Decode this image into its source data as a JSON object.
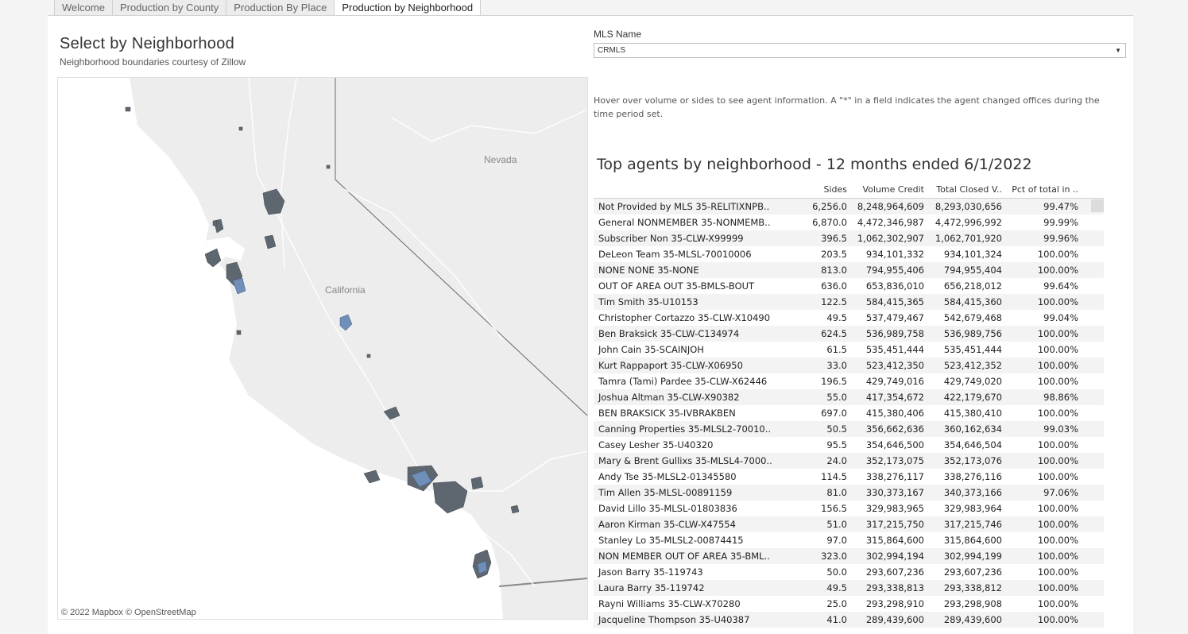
{
  "tabs": [
    {
      "label": "Welcome",
      "active": false
    },
    {
      "label": "Production by County",
      "active": false
    },
    {
      "label": "Production By Place",
      "active": false
    },
    {
      "label": "Production by Neighborhood",
      "active": true
    }
  ],
  "header": {
    "title": "Select by Neighborhood",
    "subtitle": "Neighborhood boundaries courtesy of Zillow"
  },
  "map": {
    "labels": {
      "nevada": "Nevada",
      "california": "California"
    },
    "attribution": "© 2022 Mapbox  © OpenStreetMap",
    "colors": {
      "land": "#ededed",
      "sea": "#ffffff",
      "region_dark": "#5e6670",
      "region_blue": "#6f8fb8"
    }
  },
  "filter": {
    "label": "MLS Name",
    "selected": "CRMLS"
  },
  "hint": "Hover over volume or sides to see agent information. A \"*\" in a field indicates the agent changed offices during the time period set.",
  "table": {
    "title": "Top agents by neighborhood - 12 months ended 6/1/2022",
    "columns": [
      "",
      "Sides",
      "Volume Credit",
      "Total Closed V..",
      "Pct of total in .."
    ],
    "rows": [
      [
        "Not Provided by MLS 35-RELITIXNPB..",
        "6,256.0",
        "8,248,964,609",
        "8,293,030,656",
        "99.47%"
      ],
      [
        "General NONMEMBER 35-NONMEMB..",
        "6,870.0",
        "4,472,346,987",
        "4,472,996,992",
        "99.99%"
      ],
      [
        "Subscriber Non 35-CLW-X99999",
        "396.5",
        "1,062,302,907",
        "1,062,701,920",
        "99.96%"
      ],
      [
        "DeLeon Team 35-MLSL-70010006",
        "203.5",
        "934,101,332",
        "934,101,324",
        "100.00%"
      ],
      [
        "NONE NONE 35-NONE",
        "813.0",
        "794,955,406",
        "794,955,404",
        "100.00%"
      ],
      [
        "OUT OF AREA OUT 35-BMLS-BOUT",
        "636.0",
        "653,836,010",
        "656,218,012",
        "99.64%"
      ],
      [
        "Tim Smith 35-U10153",
        "122.5",
        "584,415,365",
        "584,415,360",
        "100.00%"
      ],
      [
        "Christopher Cortazzo 35-CLW-X10490",
        "49.5",
        "537,479,467",
        "542,679,468",
        "99.04%"
      ],
      [
        "Ben Braksick 35-CLW-C134974",
        "624.5",
        "536,989,758",
        "536,989,756",
        "100.00%"
      ],
      [
        "John Cain 35-SCAINJOH",
        "61.5",
        "535,451,444",
        "535,451,444",
        "100.00%"
      ],
      [
        "Kurt Rappaport 35-CLW-X06950",
        "33.0",
        "523,412,350",
        "523,412,352",
        "100.00%"
      ],
      [
        "Tamra (Tami) Pardee 35-CLW-X62446",
        "196.5",
        "429,749,016",
        "429,749,020",
        "100.00%"
      ],
      [
        "Joshua Altman 35-CLW-X90382",
        "55.0",
        "417,354,672",
        "422,179,670",
        "98.86%"
      ],
      [
        "BEN BRAKSICK 35-IVBRAKBEN",
        "697.0",
        "415,380,406",
        "415,380,410",
        "100.00%"
      ],
      [
        "Canning Properties 35-MLSL2-70010..",
        "50.5",
        "356,662,636",
        "360,162,634",
        "99.03%"
      ],
      [
        "Casey Lesher 35-U40320",
        "95.5",
        "354,646,500",
        "354,646,504",
        "100.00%"
      ],
      [
        "Mary & Brent Gullixs 35-MLSL4-7000..",
        "24.0",
        "352,173,075",
        "352,173,076",
        "100.00%"
      ],
      [
        "Andy Tse 35-MLSL2-01345580",
        "114.5",
        "338,276,117",
        "338,276,116",
        "100.00%"
      ],
      [
        "Tim Allen 35-MLSL-00891159",
        "81.0",
        "330,373,167",
        "340,373,166",
        "97.06%"
      ],
      [
        "David Lillo 35-MLSL-01803836",
        "156.5",
        "329,983,965",
        "329,983,964",
        "100.00%"
      ],
      [
        "Aaron Kirman 35-CLW-X47554",
        "51.0",
        "317,215,750",
        "317,215,746",
        "100.00%"
      ],
      [
        "Stanley Lo 35-MLSL2-00874415",
        "97.0",
        "315,864,600",
        "315,864,600",
        "100.00%"
      ],
      [
        "NON MEMBER OUT OF AREA 35-BML..",
        "323.0",
        "302,994,194",
        "302,994,199",
        "100.00%"
      ],
      [
        "Jason Barry 35-119743",
        "50.0",
        "293,607,236",
        "293,607,236",
        "100.00%"
      ],
      [
        "Laura Barry 35-119742",
        "49.5",
        "293,338,813",
        "293,338,812",
        "100.00%"
      ],
      [
        "Rayni Williams 35-CLW-X70280",
        "25.0",
        "293,298,910",
        "293,298,908",
        "100.00%"
      ],
      [
        "Jacqueline Thompson 35-U40387",
        "41.0",
        "289,439,600",
        "289,439,600",
        "100.00%"
      ]
    ]
  }
}
